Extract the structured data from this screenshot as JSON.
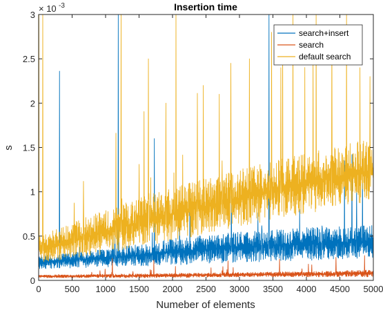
{
  "chart_data": {
    "type": "line",
    "title": "Insertion time",
    "xlabel": "Numeber of elements",
    "ylabel": "s",
    "y_exponent_base": "× 10",
    "y_exponent_power": "-3",
    "xlim": [
      0,
      5000
    ],
    "ylim": [
      0,
      3
    ],
    "x_ticks": [
      "0",
      "500",
      "1000",
      "1500",
      "2000",
      "2500",
      "3000",
      "3500",
      "4000",
      "4500",
      "5000"
    ],
    "y_ticks": [
      "0",
      "0.5",
      "1",
      "1.5",
      "2",
      "2.5",
      "3"
    ],
    "grid": false,
    "legend_location": "top-right",
    "series": [
      {
        "name": "search+insert",
        "color": "#0072BD",
        "trend": {
          "x": [
            0,
            1000,
            2000,
            3000,
            4000,
            5000
          ],
          "low": [
            0.13,
            0.15,
            0.17,
            0.2,
            0.22,
            0.25
          ],
          "high": [
            0.28,
            0.35,
            0.47,
            0.55,
            0.6,
            0.62
          ]
        },
        "spikes": [
          [
            310,
            2.36
          ],
          [
            1190,
            3.0
          ],
          [
            1730,
            1.6
          ],
          [
            2260,
            1.0
          ],
          [
            3440,
            3.0
          ],
          [
            4570,
            1.35
          ],
          [
            4680,
            1.42
          ],
          [
            2880,
            0.95
          ],
          [
            3900,
            0.8
          ]
        ]
      },
      {
        "name": "search",
        "color": "#D95319",
        "trend": {
          "x": [
            0,
            1000,
            2000,
            3000,
            4000,
            5000
          ],
          "low": [
            0.03,
            0.03,
            0.03,
            0.04,
            0.04,
            0.04
          ],
          "high": [
            0.06,
            0.07,
            0.08,
            0.09,
            0.1,
            0.12
          ]
        },
        "spikes": [
          [
            1100,
            0.25
          ],
          [
            1720,
            0.23
          ],
          [
            2830,
            0.22
          ],
          [
            3600,
            0.24
          ],
          [
            4440,
            0.26
          ],
          [
            4870,
            0.28
          ]
        ]
      },
      {
        "name": "default search",
        "color": "#EDB120",
        "trend": {
          "x": [
            0,
            1000,
            2000,
            3000,
            4000,
            5000
          ],
          "low": [
            0.2,
            0.3,
            0.45,
            0.6,
            0.75,
            0.88
          ],
          "high": [
            0.5,
            0.8,
            1.05,
            1.25,
            1.45,
            1.6
          ]
        },
        "spikes": [
          [
            5,
            3.0
          ],
          [
            60,
            3.0
          ],
          [
            1230,
            3.0
          ],
          [
            1640,
            2.5
          ],
          [
            2050,
            3.0
          ],
          [
            2460,
            2.2
          ],
          [
            2870,
            2.45
          ],
          [
            3150,
            2.5
          ],
          [
            3480,
            2.8
          ],
          [
            3800,
            3.0
          ],
          [
            4100,
            2.6
          ],
          [
            4380,
            2.8
          ],
          [
            4600,
            3.0
          ],
          [
            4800,
            2.4
          ],
          [
            4950,
            2.3
          ],
          [
            3620,
            2.4
          ],
          [
            2700,
            2.1
          ],
          [
            1900,
            2.0
          ]
        ]
      }
    ]
  }
}
